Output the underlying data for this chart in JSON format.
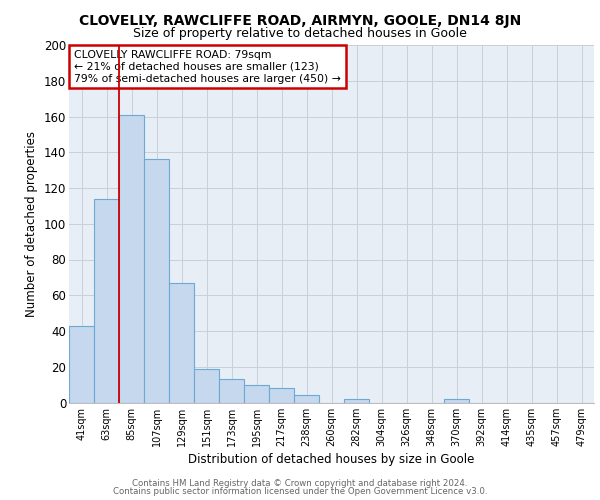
{
  "title": "CLOVELLY, RAWCLIFFE ROAD, AIRMYN, GOOLE, DN14 8JN",
  "subtitle": "Size of property relative to detached houses in Goole",
  "xlabel": "Distribution of detached houses by size in Goole",
  "ylabel": "Number of detached properties",
  "footer1": "Contains HM Land Registry data © Crown copyright and database right 2024.",
  "footer2": "Contains public sector information licensed under the Open Government Licence v3.0.",
  "annotation_line1": "CLOVELLY RAWCLIFFE ROAD: 79sqm",
  "annotation_line2": "← 21% of detached houses are smaller (123)",
  "annotation_line3": "79% of semi-detached houses are larger (450) →",
  "bar_labels": [
    "41sqm",
    "63sqm",
    "85sqm",
    "107sqm",
    "129sqm",
    "151sqm",
    "173sqm",
    "195sqm",
    "217sqm",
    "238sqm",
    "260sqm",
    "282sqm",
    "304sqm",
    "326sqm",
    "348sqm",
    "370sqm",
    "392sqm",
    "414sqm",
    "435sqm",
    "457sqm",
    "479sqm"
  ],
  "bar_values": [
    43,
    114,
    161,
    136,
    67,
    19,
    13,
    10,
    8,
    4,
    0,
    2,
    0,
    0,
    0,
    2,
    0,
    0,
    0,
    0,
    0
  ],
  "bar_color": "#c5d8ee",
  "bar_edge_color": "#6aaad4",
  "vline_x": 2.0,
  "vline_color": "#cc0000",
  "background_color": "#e8eef5",
  "grid_color": "#c8d0da",
  "ylim": [
    0,
    200
  ],
  "yticks": [
    0,
    20,
    40,
    60,
    80,
    100,
    120,
    140,
    160,
    180,
    200
  ],
  "annotation_box_edge": "#cc0000",
  "title_fontsize": 10,
  "subtitle_fontsize": 9
}
